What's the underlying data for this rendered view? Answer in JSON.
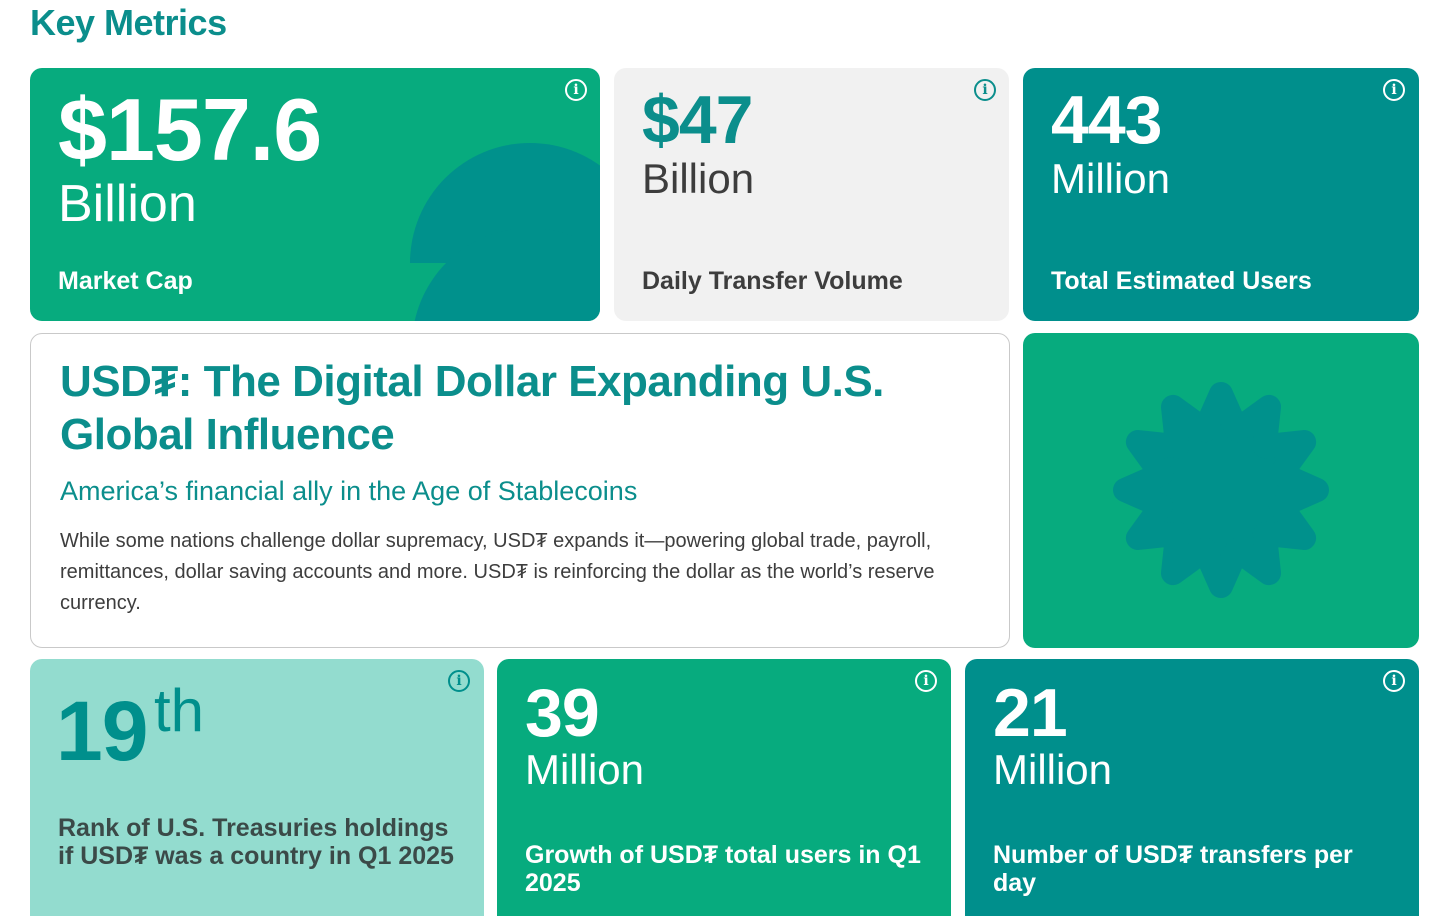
{
  "heading": "Key Metrics",
  "info_glyph": "i",
  "cards": [
    {
      "value": "$157.6",
      "unit": "Billion",
      "label": "Market Cap"
    },
    {
      "value": "$47",
      "unit": "Billion",
      "label": "Daily Transfer Volume"
    },
    {
      "value": "443",
      "unit": "Million",
      "label": "Total Estimated Users"
    }
  ],
  "main": {
    "title": "USD₮: The Digital Dollar Expanding U.S. Global Influence",
    "subtitle": "America’s financial ally in the Age of Stablecoins",
    "body": "While some nations challenge dollar supremacy, USD₮ expands it—powering global trade, payroll, remittances, dollar saving accounts and more. USD₮ is reinforcing the dollar as the world’s reserve currency."
  },
  "bottom": [
    {
      "value": "19",
      "sup": "th",
      "label": "Rank of U.S. Treasuries holdings if USD₮ was a country in Q1 2025"
    },
    {
      "value": "39",
      "unit": "Million",
      "label": "Growth of USD₮ total users in Q1 2025"
    },
    {
      "value": "21",
      "unit": "Million",
      "label": "Number of USD₮ transfers per day"
    }
  ],
  "colors": {
    "green": "#07ab7e",
    "teal": "#008f8c",
    "mint": "#93dccf",
    "gray": "#f1f1f1",
    "heading": "#0b8e8c"
  },
  "icons": [
    "info-icon",
    "half-circle-decoration",
    "star-badge-icon"
  ]
}
